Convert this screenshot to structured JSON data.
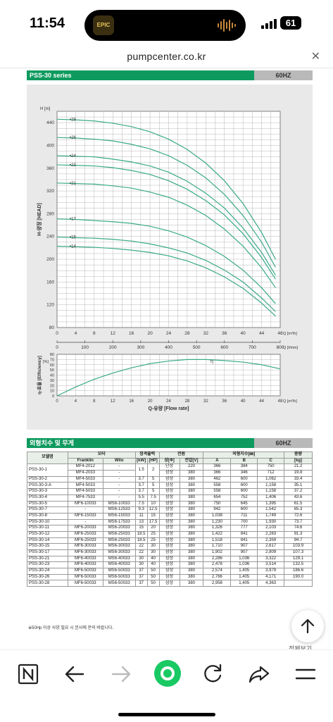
{
  "status_bar": {
    "time": "11:54",
    "battery": "61"
  },
  "app_icon_text": "EPIC",
  "browser": {
    "url": "pumpcenter.co.kr"
  },
  "section1": {
    "title": "PSS-30 series",
    "badge": "60HZ"
  },
  "chart_data": {
    "type": "line",
    "title": "",
    "ylabel": "H-양정 [HEAD]",
    "y_unit": "H [m]",
    "xlabel": "Q-유량 [Flow rate]",
    "x_unit": "Q [m³/h]",
    "x2_unit": "Q [ℓ/min]",
    "x2_ticks": [
      "0",
      "100",
      "200",
      "300",
      "400",
      "500",
      "600",
      "700",
      "800"
    ],
    "xlim": [
      0,
      48
    ],
    "ylim": [
      80,
      460
    ],
    "xticks": [
      "0",
      "4",
      "8",
      "12",
      "16",
      "20",
      "24",
      "28",
      "32",
      "36",
      "40",
      "44",
      "48"
    ],
    "yticks": [
      "80",
      "120",
      "160",
      "200",
      "240",
      "280",
      "320",
      "360",
      "400",
      "440"
    ],
    "x": [
      0,
      4,
      8,
      12,
      16,
      20,
      24,
      28,
      32,
      36,
      40,
      44,
      47
    ],
    "series": [
      {
        "name": "28",
        "values": [
          446,
          445,
          443,
          439,
          433,
          424,
          411,
          393,
          369,
          338,
          298,
          247,
          200
        ]
      },
      {
        "name": "26",
        "values": [
          414,
          413,
          411,
          408,
          402,
          394,
          382,
          365,
          343,
          314,
          277,
          230,
          186
        ]
      },
      {
        "name": "24",
        "values": [
          382,
          381,
          380,
          376,
          371,
          364,
          353,
          337,
          316,
          290,
          255,
          212,
          172
        ]
      },
      {
        "name": "23",
        "values": [
          366,
          365,
          364,
          361,
          356,
          349,
          338,
          323,
          303,
          278,
          245,
          203,
          165
        ]
      },
      {
        "name": "21",
        "values": [
          334,
          333,
          332,
          329,
          325,
          318,
          309,
          295,
          277,
          253,
          223,
          185,
          150
        ]
      },
      {
        "name": "17",
        "values": [
          271,
          270,
          268,
          266,
          263,
          258,
          250,
          239,
          224,
          205,
          181,
          150,
          122
        ]
      },
      {
        "name": "15",
        "values": [
          239,
          238,
          237,
          235,
          232,
          227,
          220,
          211,
          198,
          181,
          160,
          132,
          108
        ]
      },
      {
        "name": "14",
        "values": [
          223,
          222,
          221,
          219,
          216,
          212,
          206,
          197,
          185,
          169,
          149,
          123,
          100
        ]
      }
    ],
    "efficiency": {
      "ylabel": "η-효율 [Efficiency]",
      "y_unit": "[%]",
      "yticks": [
        "0",
        "10",
        "20",
        "30",
        "40",
        "50",
        "60",
        "70",
        "80"
      ],
      "ylim": [
        0,
        80
      ],
      "label": "η",
      "x": [
        0,
        4,
        8,
        12,
        16,
        20,
        24,
        28,
        32,
        36,
        40,
        44,
        48
      ],
      "values": [
        0,
        17,
        32,
        44,
        54,
        62,
        67,
        70,
        70,
        68,
        65,
        60,
        52
      ]
    },
    "grid": true
  },
  "section2": {
    "title": "외형치수 및 무게",
    "badge": "60HZ"
  },
  "table": {
    "h_model": "모델명",
    "h_motor": "모터",
    "h_output": "정격출력",
    "h_power": "전원",
    "h_dims": "외형치수[㎜]",
    "h_weight": "중량",
    "h_franklin": "Franklin",
    "h_wilo": "Wilo",
    "h_kw": "[kW]",
    "h_hp": "[HP]",
    "h_phase": "상[Φ]",
    "h_volt": "전압[V]",
    "h_a": "A",
    "h_b": "B",
    "h_c": "C",
    "h_kg": "[kg]",
    "rows": [
      {
        "model": "PSS-30-1",
        "franklin": "MF4-2012",
        "wilo": "-",
        "kw": "1.5",
        "hp": "2",
        "phase": "단상",
        "volt": "220",
        "a": "366",
        "b": "384",
        "c": "750",
        "kg": "21.2"
      },
      {
        "model": "",
        "franklin": "MF4-2033",
        "wilo": "-",
        "kw": "",
        "hp": "",
        "phase": "삼상",
        "volt": "380",
        "a": "366",
        "b": "346",
        "c": "712",
        "kg": "19.8"
      },
      {
        "model": "PSS-30-2",
        "franklin": "MF4-5033",
        "wilo": "-",
        "kw": "3.7",
        "hp": "5",
        "phase": "삼상",
        "volt": "380",
        "a": "462",
        "b": "600",
        "c": "1,062",
        "kg": "33.4"
      },
      {
        "model": "PSS-30-3-A",
        "franklin": "MF4-5033",
        "wilo": "-",
        "kw": "3.7",
        "hp": "5",
        "phase": "삼상",
        "volt": "380",
        "a": "558",
        "b": "600",
        "c": "1,158",
        "kg": "35.1"
      },
      {
        "model": "PSS-30-3",
        "franklin": "MF4-5033",
        "wilo": "-",
        "kw": "3.7",
        "hp": "5",
        "phase": "삼상",
        "volt": "380",
        "a": "558",
        "b": "600",
        "c": "1,158",
        "kg": "37.2"
      },
      {
        "model": "PSS-30-4",
        "franklin": "MF4-7533",
        "wilo": "-",
        "kw": "5.5",
        "hp": "7.5",
        "phase": "삼상",
        "volt": "380",
        "a": "654",
        "b": "752",
        "c": "1,406",
        "kg": "43.6"
      },
      {
        "model": "PSS-30-5",
        "franklin": "MF6-10033",
        "wilo": "MS6-10033",
        "kw": "7.5",
        "hp": "10",
        "phase": "삼상",
        "volt": "380",
        "a": "750",
        "b": "645",
        "c": "1,395",
        "kg": "61.5"
      },
      {
        "model": "PSS-30-7",
        "franklin": "-",
        "wilo": "MS6-12533",
        "kw": "9.3",
        "hp": "12.5",
        "phase": "삼상",
        "volt": "380",
        "a": "942",
        "b": "600",
        "c": "1,542",
        "kg": "65.3"
      },
      {
        "model": "PSS-30-8",
        "franklin": "MF6-15033",
        "wilo": "MS6-15033",
        "kw": "11",
        "hp": "15",
        "phase": "삼상",
        "volt": "380",
        "a": "1,038",
        "b": "711",
        "c": "1,749",
        "kg": "72.6"
      },
      {
        "model": "PSS-30-10",
        "franklin": "-",
        "wilo": "MS6-17533",
        "kw": "13",
        "hp": "17.5",
        "phase": "삼상",
        "volt": "380",
        "a": "1,230",
        "b": "700",
        "c": "1,930",
        "kg": "73.7"
      },
      {
        "model": "PSS-30-11",
        "franklin": "MF6-20033",
        "wilo": "MS6-20033",
        "kw": "15",
        "hp": "20",
        "phase": "삼상",
        "volt": "380",
        "a": "1,326",
        "b": "777",
        "c": "2,103",
        "kg": "74.6"
      },
      {
        "model": "PSS-30-12",
        "franklin": "MF6-25033",
        "wilo": "MS6-25033",
        "kw": "18.5",
        "hp": "25",
        "phase": "삼상",
        "volt": "380",
        "a": "1,422",
        "b": "841",
        "c": "2,263",
        "kg": "91.3"
      },
      {
        "model": "PSS-30-14",
        "franklin": "MF6-25033",
        "wilo": "MS6-25033",
        "kw": "18.5",
        "hp": "25",
        "phase": "삼상",
        "volt": "380",
        "a": "1,518",
        "b": "841",
        "c": "2,359",
        "kg": "94.7"
      },
      {
        "model": "PSS-30-15",
        "franklin": "MF6-30033",
        "wilo": "MS6-30033",
        "kw": "22",
        "hp": "30",
        "phase": "삼상",
        "volt": "380",
        "a": "1,710",
        "b": "907",
        "c": "2,617",
        "kg": "103.9"
      },
      {
        "model": "PSS-30-17",
        "franklin": "MF6-30033",
        "wilo": "MS6-30033",
        "kw": "22",
        "hp": "30",
        "phase": "삼상",
        "volt": "380",
        "a": "1,902",
        "b": "907",
        "c": "2,809",
        "kg": "107.3"
      },
      {
        "model": "PSS-30-21",
        "franklin": "MF6-40033",
        "wilo": "MS6-40033",
        "kw": "30",
        "hp": "40",
        "phase": "삼상",
        "volt": "380",
        "a": "2,286",
        "b": "1,036",
        "c": "3,322",
        "kg": "129.1"
      },
      {
        "model": "PSS-30-23",
        "franklin": "MF6-40033",
        "wilo": "MS6-40033",
        "kw": "30",
        "hp": "40",
        "phase": "삼상",
        "volt": "380",
        "a": "2,478",
        "b": "1,036",
        "c": "3,514",
        "kg": "132.5"
      },
      {
        "model": "PSS-30-24",
        "franklin": "MF6-50033",
        "wilo": "MS6-50033",
        "kw": "37",
        "hp": "50",
        "phase": "삼상",
        "volt": "380",
        "a": "2,574",
        "b": "1,405",
        "c": "3,979",
        "kg": "186.6"
      },
      {
        "model": "PSS-30-26",
        "franklin": "MF6-50033",
        "wilo": "MS6-50033",
        "kw": "37",
        "hp": "50",
        "phase": "삼상",
        "volt": "380",
        "a": "2,766",
        "b": "1,405",
        "c": "4,171",
        "kg": "190.0"
      },
      {
        "model": "PSS-30-28",
        "franklin": "MF6-50033",
        "wilo": "MS6-50033",
        "kw": "37",
        "hp": "50",
        "phase": "삼상",
        "volt": "380",
        "a": "2,958",
        "b": "1,405",
        "c": "4,363",
        "kg": ""
      }
    ]
  },
  "note": "※50Hp 이상 사양 필요 시 본사에 문의 바랍니다.",
  "view_all": "전체보기",
  "colors": {
    "curve": "#3aaa8a",
    "section_green": "#0e9a5e",
    "badge_gray": "#b9b9b9",
    "accent": "#18c964"
  }
}
